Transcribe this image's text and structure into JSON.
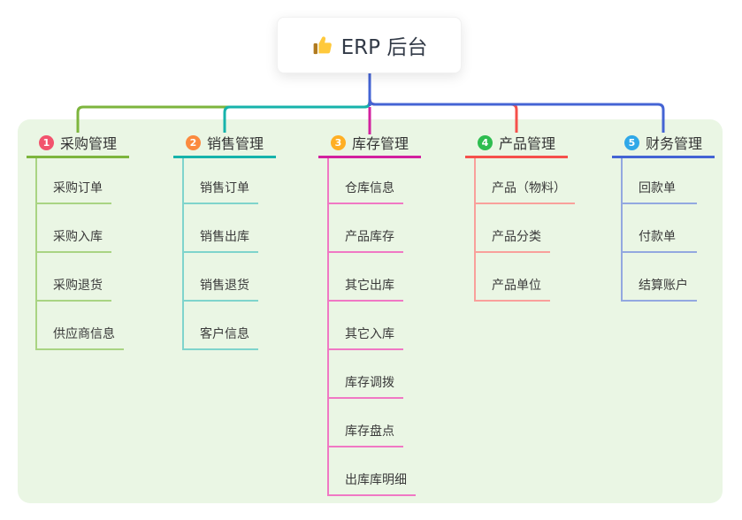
{
  "root": {
    "title": "ERP 后台",
    "icon": "thumbs-up-icon",
    "connector_color": "#4464D4"
  },
  "panel_bg": "#EAF6E4",
  "branches": [
    {
      "index": "1",
      "label": "采购管理",
      "badge_color": "#F2536D",
      "line_color": "#7DB53D",
      "child_line_color": "#A9D483",
      "children": [
        "采购订单",
        "采购入库",
        "采购退货",
        "供应商信息"
      ]
    },
    {
      "index": "2",
      "label": "销售管理",
      "badge_color": "#FB8A3F",
      "line_color": "#16B3AB",
      "child_line_color": "#7FD4CC",
      "children": [
        "销售订单",
        "销售出库",
        "销售退货",
        "客户信息"
      ]
    },
    {
      "index": "3",
      "label": "库存管理",
      "badge_color": "#FFAF24",
      "line_color": "#D2219F",
      "child_line_color": "#F078C4",
      "children": [
        "仓库信息",
        "产品库存",
        "其它出库",
        "其它入库",
        "库存调拨",
        "库存盘点",
        "出库库明细"
      ]
    },
    {
      "index": "4",
      "label": "产品管理",
      "badge_color": "#2EBD50",
      "line_color": "#F5504B",
      "child_line_color": "#F9A09B",
      "children": [
        "产品（物料）",
        "产品分类",
        "产品单位"
      ]
    },
    {
      "index": "5",
      "label": "财务管理",
      "badge_color": "#2FA8E8",
      "line_color": "#4464D4",
      "child_line_color": "#93A8E0",
      "children": [
        "回款单",
        "付款单",
        "结算账户"
      ]
    }
  ]
}
